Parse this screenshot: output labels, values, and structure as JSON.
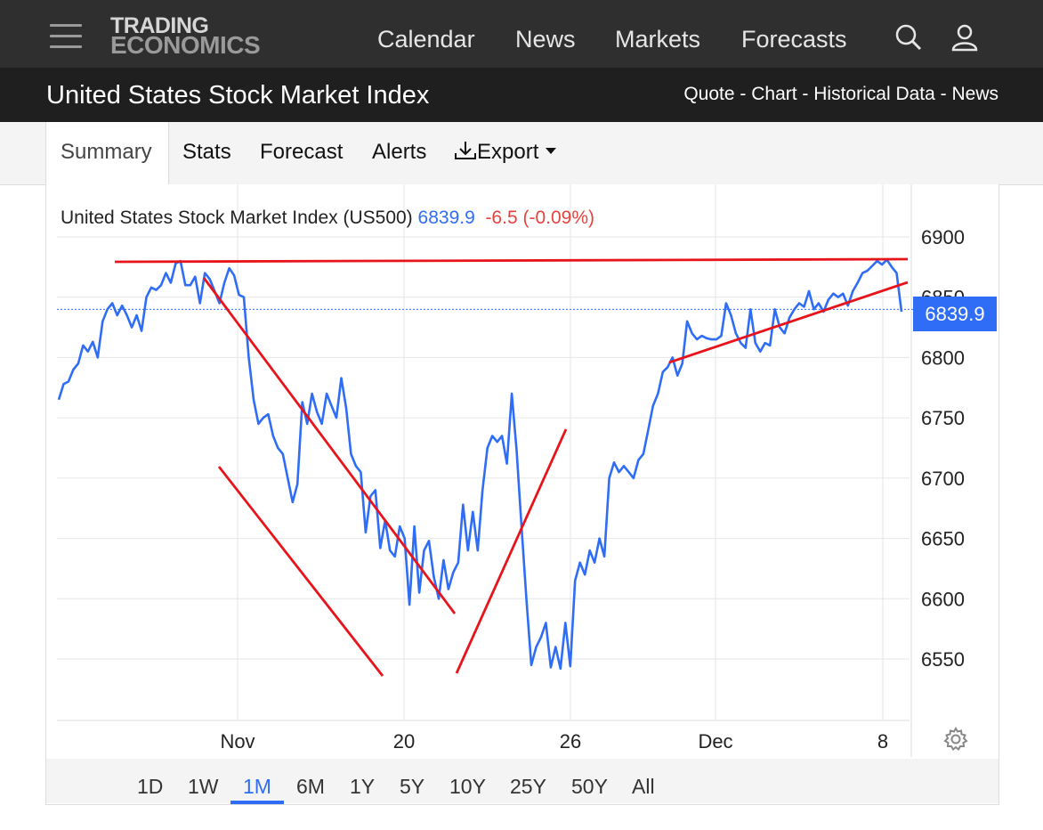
{
  "nav": {
    "logo_line1": "TRADING",
    "logo_line2": "ECONOMICS",
    "links": [
      "Calendar",
      "News",
      "Markets",
      "Forecasts"
    ]
  },
  "title_bar": {
    "title": "United States Stock Market Index",
    "links": [
      "Quote",
      "Chart",
      "Historical Data",
      "News"
    ],
    "separator": " - "
  },
  "tabs": {
    "active": "Summary",
    "items": [
      "Stats",
      "Forecast",
      "Alerts",
      "Export"
    ]
  },
  "chart_header": {
    "name": "United States Stock Market Index (US500)",
    "price": "6839.9",
    "change": "-6.5 (-0.09%)"
  },
  "price_tag": "6839.9",
  "ranges": {
    "items": [
      "1D",
      "1W",
      "1M",
      "6M",
      "1Y",
      "5Y",
      "10Y",
      "25Y",
      "50Y",
      "All"
    ],
    "active": "1M"
  },
  "colors": {
    "line": "#2f6df6",
    "trendlines": "#e8141c",
    "down": "#e6433d"
  },
  "chart_data": {
    "type": "line",
    "title": "United States Stock Market Index (US500)",
    "x_tick_labels": [
      "Nov",
      "20",
      "26",
      "Dec",
      "8"
    ],
    "y_ticks": [
      6900,
      6850,
      6800,
      6750,
      6700,
      6650,
      6600,
      6550
    ],
    "ylim": [
      6510,
      6920
    ],
    "grid": true,
    "legend": "none",
    "last_value": 6839.9,
    "series": [
      {
        "values": [
          6765,
          6778,
          6780,
          6790,
          6795,
          6810,
          6805,
          6813,
          6800,
          6830,
          6840,
          6845,
          6835,
          6843,
          6835,
          6825,
          6835,
          6822,
          6850,
          6858,
          6856,
          6860,
          6870,
          6862,
          6878,
          6880,
          6860,
          6860,
          6867,
          6845,
          6870,
          6865,
          6855,
          6845,
          6862,
          6874,
          6868,
          6852,
          6850,
          6800,
          6765,
          6745,
          6750,
          6753,
          6735,
          6725,
          6720,
          6700,
          6680,
          6695,
          6763,
          6745,
          6770,
          6755,
          6745,
          6770,
          6760,
          6750,
          6783,
          6758,
          6720,
          6710,
          6705,
          6655,
          6685,
          6690,
          6642,
          6665,
          6640,
          6635,
          6660,
          6650,
          6595,
          6660,
          6605,
          6640,
          6648,
          6618,
          6600,
          6632,
          6608,
          6622,
          6630,
          6678,
          6640,
          6672,
          6640,
          6690,
          6725,
          6735,
          6730,
          6735,
          6712,
          6770,
          6722,
          6660,
          6600,
          6545,
          6560,
          6568,
          6580,
          6543,
          6560,
          6542,
          6580,
          6544,
          6615,
          6630,
          6620,
          6640,
          6630,
          6650,
          6635,
          6700,
          6713,
          6705,
          6710,
          6705,
          6700,
          6715,
          6720,
          6740,
          6760,
          6770,
          6788,
          6792,
          6800,
          6785,
          6795,
          6830,
          6820,
          6815,
          6818,
          6816,
          6815,
          6815,
          6818,
          6845,
          6835,
          6820,
          6812,
          6808,
          6840,
          6812,
          6805,
          6812,
          6810,
          6840,
          6825,
          6820,
          6833,
          6840,
          6845,
          6842,
          6855,
          6840,
          6845,
          6838,
          6848,
          6853,
          6850,
          6853,
          6843,
          6855,
          6862,
          6870,
          6872,
          6876,
          6880,
          6877,
          6881,
          6875,
          6870,
          6838
        ]
      }
    ]
  }
}
